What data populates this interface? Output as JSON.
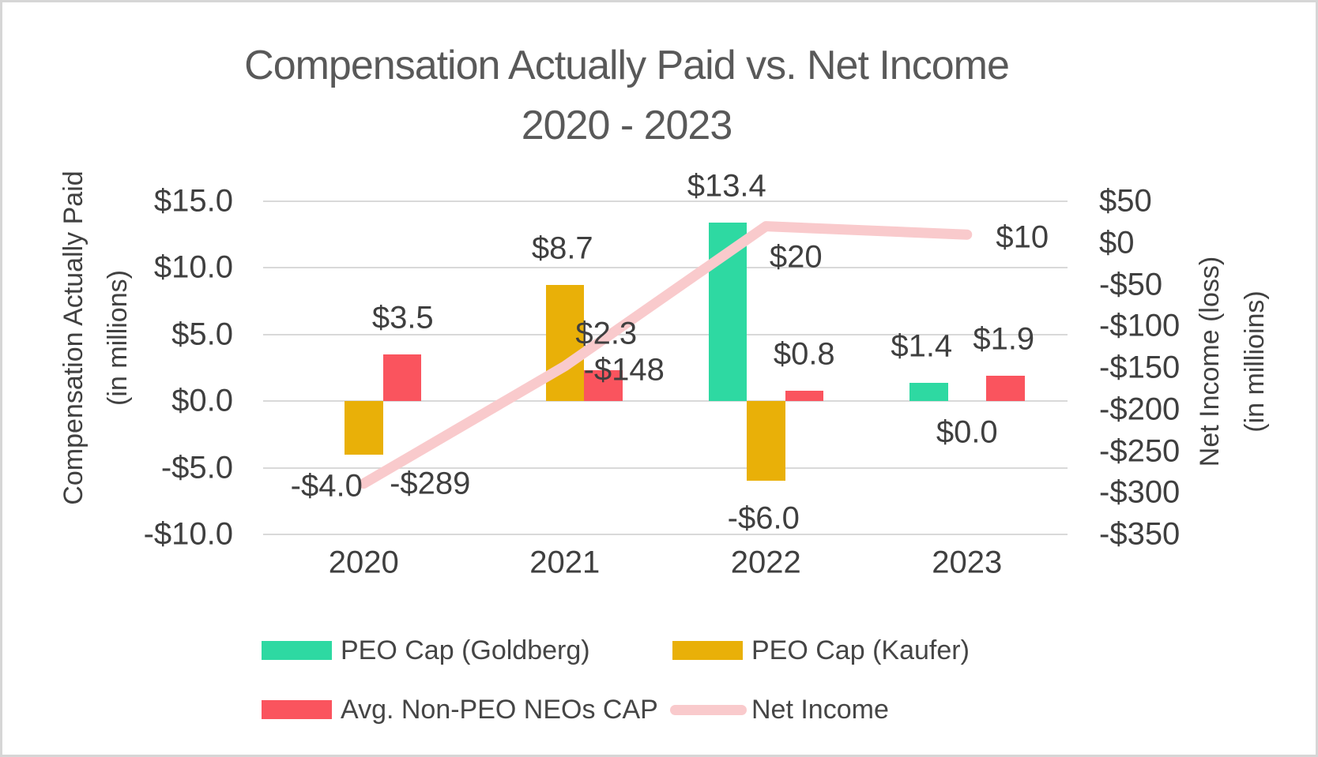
{
  "title": {
    "line1": "Compensation Actually Paid vs. Net Income",
    "line2": "2020 - 2023"
  },
  "axes": {
    "left": {
      "title_line1": "Compensation Actually Paid",
      "title_line2": "(in millions)",
      "ticks": [
        "$15.0",
        "$10.0",
        "$5.0",
        "$0.0",
        "-$5.0",
        "-$10.0"
      ]
    },
    "right": {
      "title_line1": "Net Income (loss)",
      "title_line2": "(in millioins)",
      "ticks": [
        "$50",
        "$0",
        "-$50",
        "-$100",
        "-$150",
        "-$200",
        "-$250",
        "-$300",
        "-$350"
      ]
    },
    "x": {
      "categories": [
        "2020",
        "2021",
        "2022",
        "2023"
      ]
    }
  },
  "legend": [
    {
      "name": "PEO Cap (Goldberg)",
      "type": "bar",
      "color": "#2ED9A2"
    },
    {
      "name": "PEO Cap (Kaufer)",
      "type": "bar",
      "color": "#E9B008"
    },
    {
      "name": "Avg. Non-PEO NEOs CAP",
      "type": "bar",
      "color": "#FA545E"
    },
    {
      "name": "Net Income",
      "type": "line",
      "color": "#F9CACC"
    }
  ],
  "colors": {
    "goldberg_green": "#2ED9A2",
    "kaufer_gold": "#E9B008",
    "non_peo_red": "#FA545E",
    "net_income_pink": "#F9CACC",
    "gridline_gray": "#D9D9D9",
    "title_gray": "#595959",
    "label_gray": "#3F3F3F"
  },
  "chart_data": {
    "type": "bar",
    "subtype": "clustered bars with overlaid line, dual y-axes",
    "title": "Compensation Actually Paid vs. Net Income 2020 - 2023",
    "categories": [
      "2020",
      "2021",
      "2022",
      "2023"
    ],
    "series": [
      {
        "name": "PEO Cap (Goldberg)",
        "type": "bar",
        "axis": "left",
        "values": [
          null,
          null,
          13.4,
          1.4
        ],
        "labels": [
          null,
          null,
          "$13.4",
          "$1.4"
        ]
      },
      {
        "name": "PEO Cap (Kaufer)",
        "type": "bar",
        "axis": "left",
        "values": [
          -4.0,
          8.7,
          -6.0,
          0.0
        ],
        "labels": [
          "-$4.0",
          "$8.7",
          "-$6.0",
          "$0.0"
        ]
      },
      {
        "name": "Avg. Non-PEO NEOs CAP",
        "type": "bar",
        "axis": "left",
        "values": [
          3.5,
          2.3,
          0.8,
          1.9
        ],
        "labels": [
          "$3.5",
          "$2.3",
          "$0.8",
          "$1.9"
        ]
      },
      {
        "name": "Net Income",
        "type": "line",
        "axis": "right",
        "values": [
          -289,
          -148,
          20,
          10
        ],
        "labels": [
          "-$289",
          "-$148",
          "$20",
          "$10"
        ]
      }
    ],
    "left_axis": {
      "label": "Compensation Actually Paid (in millions)",
      "min": -10,
      "max": 15,
      "major_unit": 5
    },
    "right_axis": {
      "label": "Net Income (loss) (in millioins)",
      "min": -350,
      "max": 50,
      "major_unit": 50
    },
    "grid": true,
    "legend_position": "bottom"
  }
}
